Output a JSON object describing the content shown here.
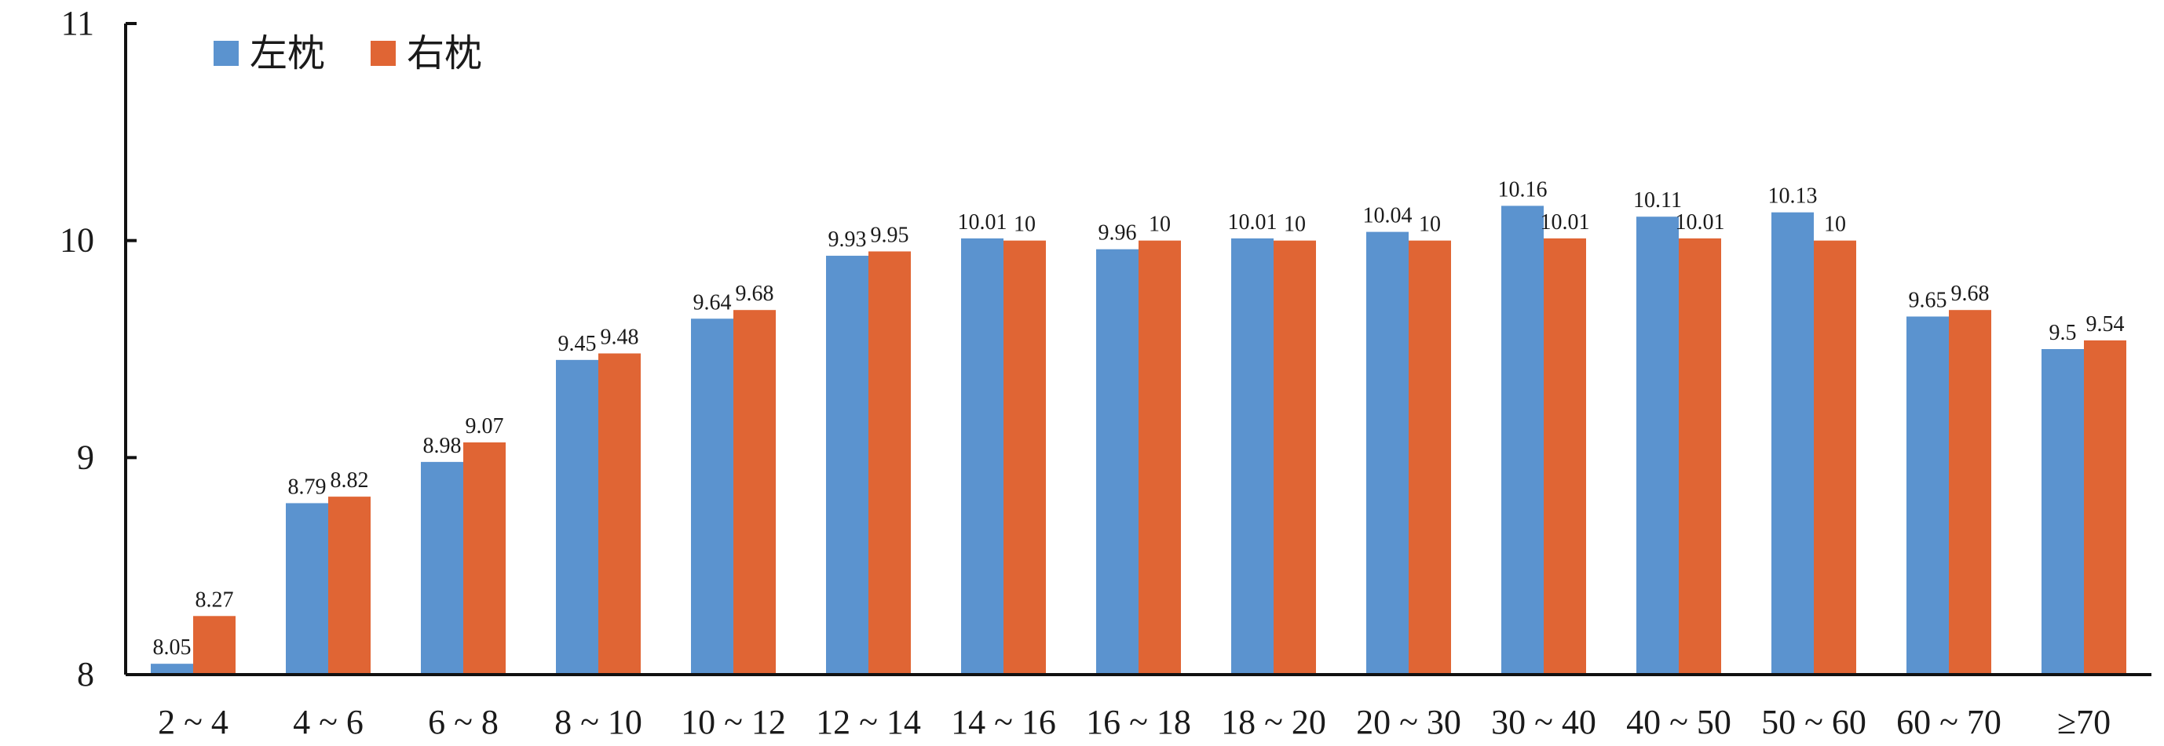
{
  "chart_data": {
    "type": "bar",
    "categories": [
      "2 ~ 4",
      "4 ~ 6",
      "6 ~ 8",
      "8 ~ 10",
      "10 ~ 12",
      "12 ~ 14",
      "14 ~ 16",
      "16 ~ 18",
      "18 ~ 20",
      "20 ~ 30",
      "30 ~ 40",
      "40 ~ 50",
      "50 ~ 60",
      "60 ~ 70",
      "≥70"
    ],
    "series": [
      {
        "name": "左枕",
        "color": "#5b93cf",
        "values": [
          8.05,
          8.79,
          8.98,
          9.45,
          9.64,
          9.93,
          10.01,
          9.96,
          10.01,
          10.04,
          10.16,
          10.11,
          10.13,
          9.65,
          9.5
        ]
      },
      {
        "name": "右枕",
        "color": "#e06534",
        "values": [
          8.27,
          8.82,
          9.07,
          9.48,
          9.68,
          9.95,
          10,
          10,
          10,
          10,
          10.01,
          10.01,
          10,
          9.68,
          9.54
        ]
      }
    ],
    "ylim": [
      8,
      11
    ],
    "yticks": [
      8,
      9,
      10,
      11
    ],
    "grid": false,
    "legend_position": "top-left",
    "title": "",
    "xlabel": "",
    "ylabel": ""
  }
}
